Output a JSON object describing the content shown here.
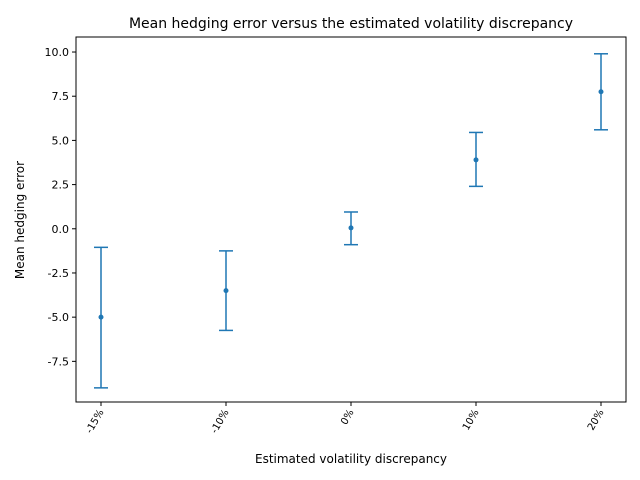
{
  "chart_data": {
    "type": "errorbar",
    "title": "Mean hedging error versus the estimated volatility discrepancy",
    "xlabel": "Estimated volatility discrepancy",
    "ylabel": "Mean hedging error",
    "categories": [
      "-15%",
      "-10%",
      "0%",
      "10%",
      "20%"
    ],
    "series": [
      {
        "values": [
          -5.0,
          -3.5,
          0.05,
          3.9,
          7.75
        ],
        "err_low": [
          -9.0,
          -5.75,
          -0.9,
          2.4,
          5.6
        ],
        "err_high": [
          -1.05,
          -1.25,
          0.95,
          5.45,
          9.9
        ]
      }
    ],
    "ylim": [
      -9.8,
      10.85
    ],
    "yticks": [
      "-7.5",
      "-5.0",
      "-2.5",
      "0.0",
      "2.5",
      "5.0",
      "7.5",
      "10.0"
    ],
    "ytick_values": [
      -7.5,
      -5.0,
      -2.5,
      0.0,
      2.5,
      5.0,
      7.5,
      10.0
    ],
    "grid": false,
    "color": "#1f77b4"
  }
}
